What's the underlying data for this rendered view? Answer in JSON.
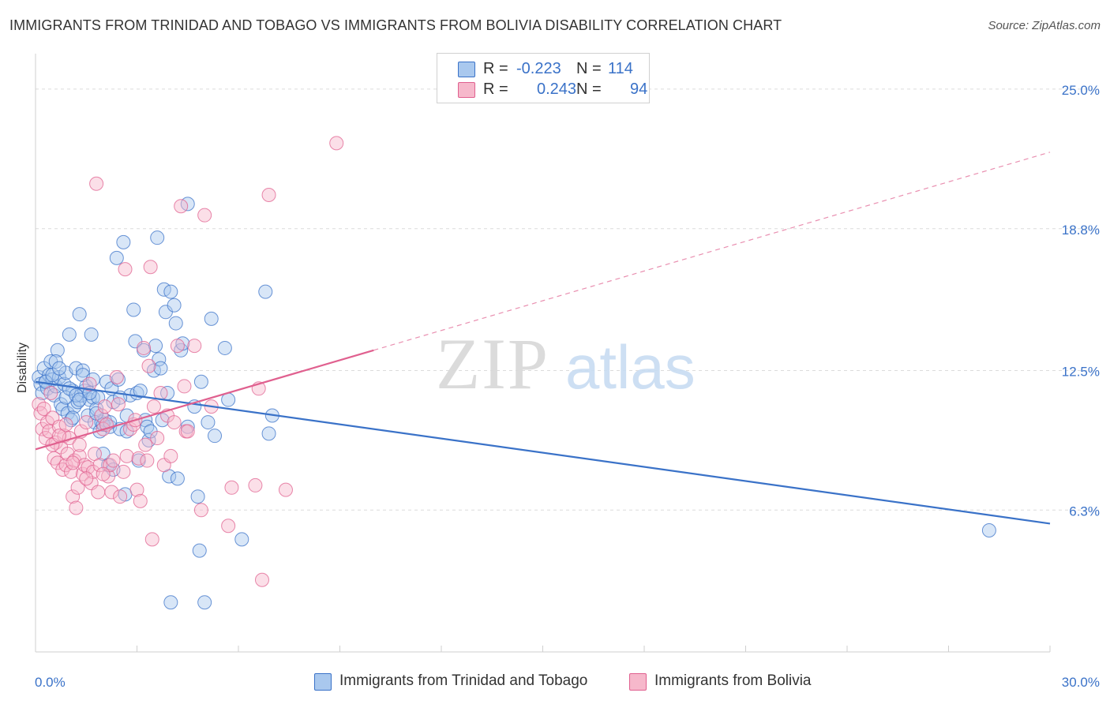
{
  "title": "IMMIGRANTS FROM TRINIDAD AND TOBAGO VS IMMIGRANTS FROM BOLIVIA DISABILITY CORRELATION CHART",
  "source": "Source: ZipAtlas.com",
  "watermark": {
    "zip": "ZIP",
    "atlas": "atlas"
  },
  "colors": {
    "blue": "#3a72c8",
    "blue_fill": "#a9c8ee",
    "pink": "#e0608f",
    "pink_fill": "#f6b8cb",
    "grid": "#dcdcdc"
  },
  "legend": {
    "rows": [
      {
        "r_label": "R =",
        "r_value": "-0.223",
        "n_label": "N =",
        "n_value": "114",
        "color": "blue"
      },
      {
        "r_label": "R =",
        "r_value": "0.243",
        "n_label": "N =",
        "n_value": "94",
        "color": "pink"
      }
    ]
  },
  "bottom_legend": [
    {
      "label": "Immigrants from Trinidad and Tobago",
      "color": "blue"
    },
    {
      "label": "Immigrants from Bolivia",
      "color": "pink"
    }
  ],
  "chart_data": {
    "type": "scatter",
    "ylabel": "Disability",
    "xlim": [
      0,
      30
    ],
    "ylim": [
      0,
      26.4
    ],
    "x_tick_labels": [
      "0.0%",
      "30.0%"
    ],
    "y_ticks": [
      6.3,
      12.5,
      18.8,
      25.0
    ],
    "y_tick_labels": [
      "6.3%",
      "12.5%",
      "18.8%",
      "25.0%"
    ],
    "grid": true,
    "series": [
      {
        "name": "Immigrants from Trinidad and Tobago",
        "color": "blue",
        "trend": {
          "x": [
            0,
            30
          ],
          "y": [
            12.0,
            5.7
          ],
          "style": "solid"
        },
        "points": [
          [
            0.1,
            12.2
          ],
          [
            0.15,
            11.9
          ],
          [
            0.2,
            11.5
          ],
          [
            0.25,
            12.6
          ],
          [
            0.3,
            12.0
          ],
          [
            0.35,
            11.7
          ],
          [
            0.4,
            12.3
          ],
          [
            0.45,
            12.9
          ],
          [
            0.5,
            12.1
          ],
          [
            0.55,
            11.4
          ],
          [
            0.6,
            11.8
          ],
          [
            0.65,
            13.4
          ],
          [
            0.7,
            12.2
          ],
          [
            0.75,
            11.0
          ],
          [
            0.8,
            10.8
          ],
          [
            0.85,
            11.9
          ],
          [
            0.9,
            12.4
          ],
          [
            0.95,
            10.6
          ],
          [
            1.0,
            14.1
          ],
          [
            1.05,
            10.3
          ],
          [
            1.1,
            11.6
          ],
          [
            1.15,
            10.9
          ],
          [
            1.2,
            12.6
          ],
          [
            1.25,
            11.1
          ],
          [
            1.3,
            15.0
          ],
          [
            1.35,
            11.4
          ],
          [
            1.4,
            12.5
          ],
          [
            1.45,
            11.6
          ],
          [
            1.5,
            11.8
          ],
          [
            1.55,
            10.5
          ],
          [
            1.6,
            11.2
          ],
          [
            1.65,
            14.1
          ],
          [
            1.7,
            11.3
          ],
          [
            1.75,
            10.2
          ],
          [
            1.8,
            10.8
          ],
          [
            1.85,
            11.3
          ],
          [
            1.9,
            9.8
          ],
          [
            1.95,
            10.2
          ],
          [
            2.0,
            8.8
          ],
          [
            2.05,
            10.3
          ],
          [
            2.1,
            12.0
          ],
          [
            2.15,
            8.3
          ],
          [
            2.2,
            10.0
          ],
          [
            2.25,
            11.7
          ],
          [
            2.3,
            11.1
          ],
          [
            2.4,
            17.5
          ],
          [
            2.45,
            12.1
          ],
          [
            2.5,
            9.9
          ],
          [
            2.6,
            18.2
          ],
          [
            2.65,
            7.0
          ],
          [
            2.7,
            10.5
          ],
          [
            2.8,
            11.4
          ],
          [
            2.9,
            15.2
          ],
          [
            2.95,
            13.8
          ],
          [
            3.0,
            11.5
          ],
          [
            3.05,
            8.5
          ],
          [
            3.1,
            11.6
          ],
          [
            3.2,
            13.4
          ],
          [
            3.25,
            10.3
          ],
          [
            3.3,
            10.0
          ],
          [
            3.35,
            9.4
          ],
          [
            3.4,
            9.8
          ],
          [
            3.5,
            12.5
          ],
          [
            3.55,
            13.6
          ],
          [
            3.6,
            18.4
          ],
          [
            3.65,
            13.0
          ],
          [
            3.7,
            12.6
          ],
          [
            3.75,
            10.3
          ],
          [
            3.8,
            16.1
          ],
          [
            3.85,
            15.1
          ],
          [
            3.9,
            11.5
          ],
          [
            3.95,
            7.8
          ],
          [
            4.0,
            16.0
          ],
          [
            4.1,
            15.4
          ],
          [
            4.15,
            14.6
          ],
          [
            4.2,
            7.7
          ],
          [
            4.3,
            13.4
          ],
          [
            4.35,
            13.7
          ],
          [
            4.5,
            19.9
          ],
          [
            4.5,
            10.0
          ],
          [
            4.7,
            10.9
          ],
          [
            4.8,
            6.9
          ],
          [
            4.85,
            4.5
          ],
          [
            4.9,
            12.0
          ],
          [
            5.0,
            2.2
          ],
          [
            5.1,
            10.2
          ],
          [
            5.2,
            14.8
          ],
          [
            5.3,
            9.6
          ],
          [
            5.6,
            13.5
          ],
          [
            5.7,
            11.2
          ],
          [
            6.1,
            5.0
          ],
          [
            6.8,
            16.0
          ],
          [
            6.9,
            9.7
          ],
          [
            7.0,
            10.5
          ],
          [
            0.3,
            12.0
          ],
          [
            0.5,
            12.3
          ],
          [
            0.6,
            12.9
          ],
          [
            0.7,
            12.6
          ],
          [
            0.9,
            11.3
          ],
          [
            1.0,
            11.7
          ],
          [
            1.1,
            10.4
          ],
          [
            1.2,
            11.4
          ],
          [
            1.3,
            11.2
          ],
          [
            1.4,
            12.3
          ],
          [
            1.6,
            11.5
          ],
          [
            1.7,
            12.1
          ],
          [
            1.8,
            10.6
          ],
          [
            2.0,
            10.1
          ],
          [
            2.2,
            10.2
          ],
          [
            2.3,
            8.1
          ],
          [
            2.5,
            11.3
          ],
          [
            2.7,
            9.8
          ],
          [
            4.0,
            2.2
          ],
          [
            28.2,
            5.4
          ]
        ]
      },
      {
        "name": "Immigrants from Bolivia",
        "color": "pink",
        "trend": {
          "x": [
            0,
            10
          ],
          "y": [
            9.0,
            13.4
          ],
          "style": "solid",
          "extended": {
            "x": [
              10,
              30
            ],
            "y": [
              13.4,
              22.2
            ],
            "style": "dashed"
          }
        },
        "points": [
          [
            0.1,
            11.0
          ],
          [
            0.15,
            10.6
          ],
          [
            0.2,
            9.9
          ],
          [
            0.25,
            10.8
          ],
          [
            0.3,
            9.5
          ],
          [
            0.35,
            10.2
          ],
          [
            0.4,
            9.8
          ],
          [
            0.45,
            11.5
          ],
          [
            0.5,
            10.4
          ],
          [
            0.55,
            8.6
          ],
          [
            0.6,
            9.3
          ],
          [
            0.65,
            8.4
          ],
          [
            0.7,
            10.0
          ],
          [
            0.75,
            9.1
          ],
          [
            0.8,
            8.1
          ],
          [
            0.85,
            9.6
          ],
          [
            0.9,
            8.3
          ],
          [
            0.95,
            8.8
          ],
          [
            1.0,
            9.5
          ],
          [
            1.05,
            8.0
          ],
          [
            1.1,
            6.9
          ],
          [
            1.15,
            8.5
          ],
          [
            1.2,
            6.4
          ],
          [
            1.25,
            7.3
          ],
          [
            1.3,
            8.7
          ],
          [
            1.35,
            9.8
          ],
          [
            1.4,
            7.9
          ],
          [
            1.45,
            8.3
          ],
          [
            1.5,
            10.2
          ],
          [
            1.55,
            8.2
          ],
          [
            1.6,
            11.9
          ],
          [
            1.65,
            7.5
          ],
          [
            1.7,
            8.0
          ],
          [
            1.75,
            8.8
          ],
          [
            1.8,
            20.8
          ],
          [
            1.85,
            7.1
          ],
          [
            1.9,
            8.3
          ],
          [
            1.95,
            10.5
          ],
          [
            2.0,
            9.9
          ],
          [
            2.05,
            10.9
          ],
          [
            2.1,
            10.1
          ],
          [
            2.15,
            7.8
          ],
          [
            2.2,
            8.3
          ],
          [
            2.25,
            7.1
          ],
          [
            2.3,
            8.5
          ],
          [
            2.4,
            12.2
          ],
          [
            2.45,
            11.0
          ],
          [
            2.5,
            6.9
          ],
          [
            2.6,
            8.0
          ],
          [
            2.65,
            17.0
          ],
          [
            2.7,
            8.7
          ],
          [
            2.8,
            9.9
          ],
          [
            2.9,
            10.1
          ],
          [
            2.95,
            10.3
          ],
          [
            3.0,
            7.2
          ],
          [
            3.05,
            8.6
          ],
          [
            3.1,
            6.7
          ],
          [
            3.2,
            13.5
          ],
          [
            3.25,
            9.2
          ],
          [
            3.3,
            8.5
          ],
          [
            3.35,
            12.7
          ],
          [
            3.4,
            17.1
          ],
          [
            3.45,
            5.0
          ],
          [
            3.5,
            10.9
          ],
          [
            3.6,
            9.5
          ],
          [
            3.7,
            11.5
          ],
          [
            3.8,
            8.3
          ],
          [
            3.9,
            10.5
          ],
          [
            4.0,
            8.7
          ],
          [
            4.1,
            10.2
          ],
          [
            4.2,
            13.6
          ],
          [
            4.3,
            19.8
          ],
          [
            4.4,
            11.8
          ],
          [
            4.45,
            9.8
          ],
          [
            4.5,
            9.8
          ],
          [
            4.7,
            13.6
          ],
          [
            4.9,
            6.3
          ],
          [
            5.0,
            19.4
          ],
          [
            5.2,
            10.9
          ],
          [
            5.7,
            5.6
          ],
          [
            5.8,
            7.3
          ],
          [
            6.5,
            7.4
          ],
          [
            6.6,
            11.7
          ],
          [
            6.7,
            3.2
          ],
          [
            6.9,
            20.3
          ],
          [
            7.4,
            7.2
          ],
          [
            8.9,
            22.6
          ],
          [
            0.5,
            9.2
          ],
          [
            0.7,
            9.6
          ],
          [
            0.9,
            10.1
          ],
          [
            1.1,
            8.4
          ],
          [
            1.3,
            9.2
          ],
          [
            1.5,
            7.7
          ],
          [
            2.0,
            7.9
          ]
        ]
      }
    ]
  }
}
